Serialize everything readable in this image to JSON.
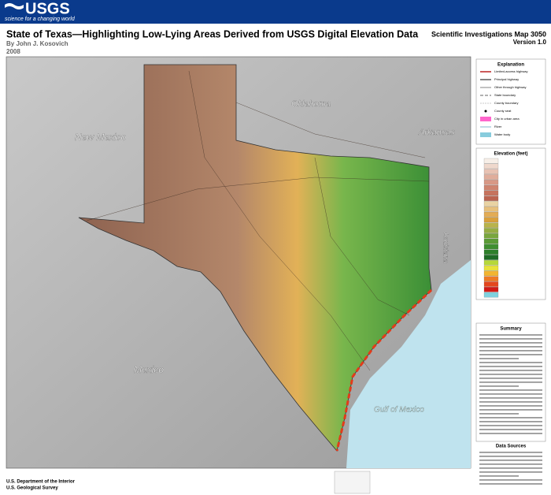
{
  "header": {
    "agency": "USGS",
    "tagline": "science for a changing world"
  },
  "title": "State of Texas—Highlighting Low-Lying Areas Derived from USGS Digital Elevation Data",
  "author": "By John J. Kosovich",
  "year": "2008",
  "series": "Scientific Investigations Map 3050",
  "version": "Version 1.0",
  "map_labels": [
    "New Mexico",
    "Oklahoma",
    "Arkansas",
    "Louisiana",
    "Mexico",
    "Gulf of Mexico"
  ],
  "explanation": {
    "title": "Explanation",
    "items": [
      "Limited-access highway",
      "Principal highway",
      "Other through highway",
      "State boundary",
      "County boundary",
      "County seat",
      "City in urban area",
      "River",
      "Water body"
    ]
  },
  "elevation": {
    "title": "Elevation (feet)"
  },
  "summary": {
    "title": "Summary"
  },
  "data_sources": {
    "title": "Data Sources"
  },
  "footer": {
    "department": "U.S. Department of the Interior",
    "survey": "U.S. Geological Survey"
  }
}
